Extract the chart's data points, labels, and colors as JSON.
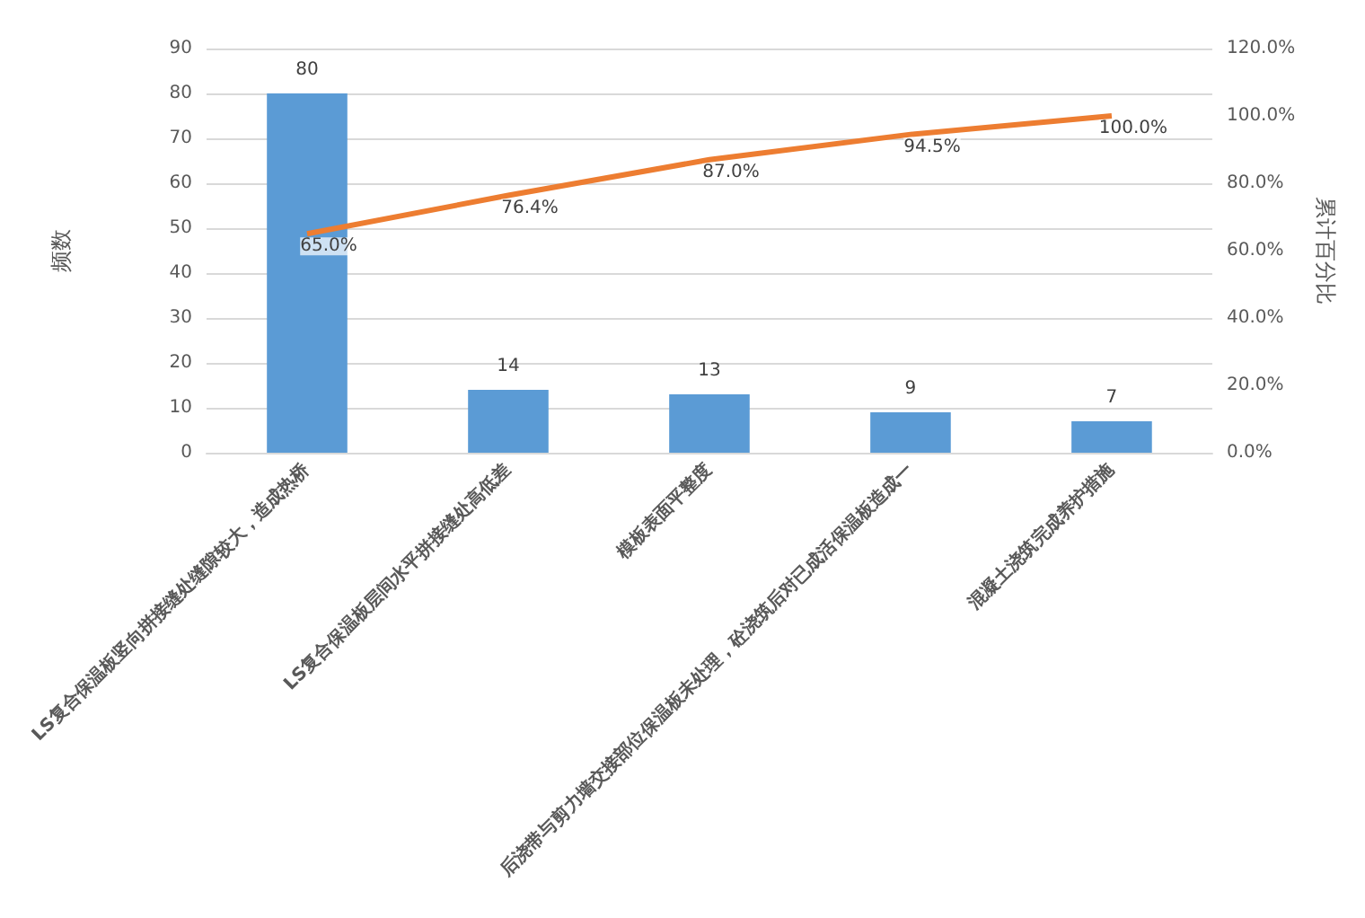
{
  "chart_data": {
    "type": "bar",
    "ylabel": "频数",
    "y2label": "累计百分比",
    "categories": [
      "LS复合保温板竖向拼接缝处缝隙较大，造成热桥",
      "LS复合保温板层间水平拼接缝处高低差",
      "模板表面平整度",
      "后浇带与剪力墙交接部位保温板未处理，砼浇筑后对已成活保温板造成一",
      "混凝土浇筑完成养护措施"
    ],
    "series": [
      {
        "color": "#5b9bd5",
        "values": [
          80,
          14,
          13,
          9,
          7
        ],
        "value_labels": [
          "80",
          "14",
          "13",
          "9",
          "7"
        ]
      },
      {
        "type": "line",
        "axis": "y2",
        "color": "#ed7d31",
        "values": [
          65.0,
          76.4,
          87.0,
          94.5,
          100.0
        ],
        "value_labels": [
          "65.0%",
          "76.4%",
          "87.0%",
          "94.5%",
          "100.0%"
        ]
      }
    ],
    "ylim": [
      0,
      90
    ],
    "yticks": [
      0,
      10,
      20,
      30,
      40,
      50,
      60,
      70,
      80,
      90
    ],
    "y2lim": [
      0,
      120
    ],
    "y2ticks": [
      {
        "value": 0,
        "label": "0.0%"
      },
      {
        "value": 20,
        "label": "20.0%"
      },
      {
        "value": 40,
        "label": "40.0%"
      },
      {
        "value": 60,
        "label": "60.0%"
      },
      {
        "value": 80,
        "label": "80.0%"
      },
      {
        "value": 100,
        "label": "100.0%"
      },
      {
        "value": 120,
        "label": "120.0%"
      }
    ],
    "grid": "y",
    "marker": "none"
  }
}
